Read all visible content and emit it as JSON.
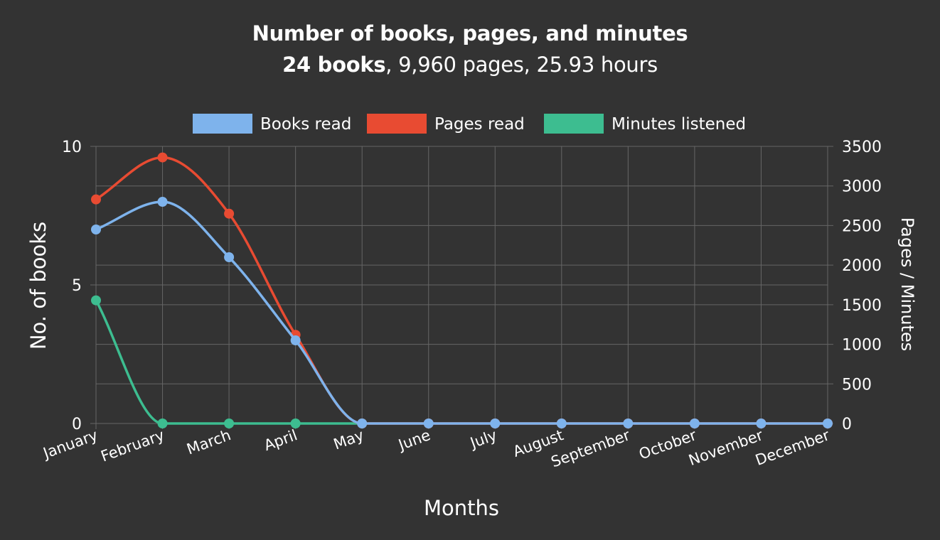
{
  "chart_data": {
    "type": "line",
    "title": "Number of books, pages, and minutes",
    "subtitle": {
      "bold": "24 books",
      "rest": ", 9,960 pages, 25.93 hours"
    },
    "categories": [
      "January",
      "February",
      "March",
      "April",
      "May",
      "June",
      "July",
      "August",
      "September",
      "October",
      "November",
      "December"
    ],
    "series": [
      {
        "name": "Books read",
        "axis": "left",
        "color": "#7eb3ec",
        "values": [
          7,
          8,
          6,
          3,
          0,
          0,
          0,
          0,
          0,
          0,
          0,
          0
        ]
      },
      {
        "name": "Pages read",
        "axis": "right",
        "color": "#e84b32",
        "values": [
          2830,
          3360,
          2650,
          1120,
          0,
          0,
          0,
          0,
          0,
          0,
          0,
          0
        ]
      },
      {
        "name": "Minutes listened",
        "axis": "right",
        "color": "#3dbd90",
        "values": [
          1555,
          0,
          0,
          0,
          0,
          null,
          null,
          null,
          null,
          null,
          null,
          null
        ]
      }
    ],
    "xlabel": "Months",
    "ylabel_left": "No. of books",
    "ylabel_right": "Pages / Minutes",
    "ylim_left": [
      0,
      10
    ],
    "ylim_right": [
      0,
      3500
    ],
    "yticks_left": [
      0,
      5,
      10
    ],
    "yticks_right": [
      0,
      500,
      1000,
      1500,
      2000,
      2500,
      3000,
      3500
    ],
    "grid": true,
    "legend_position": "top",
    "draw_order": [
      "Minutes listened",
      "Pages read",
      "Books read"
    ]
  }
}
